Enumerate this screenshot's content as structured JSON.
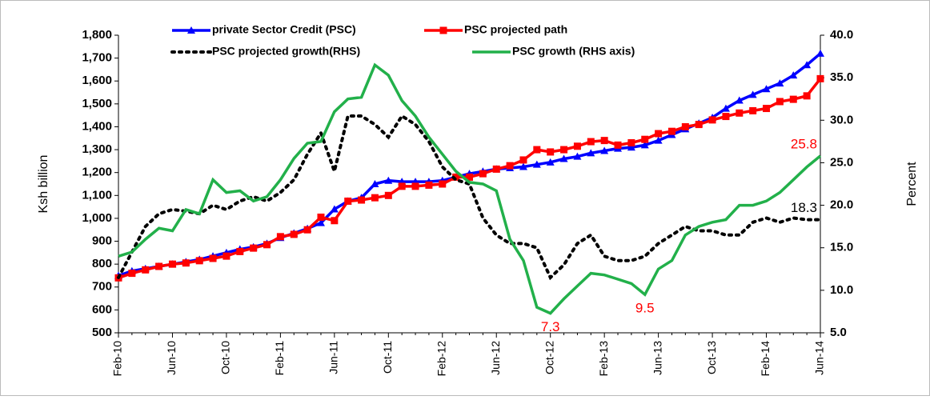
{
  "chart_data": {
    "type": "line",
    "y_label": "Ksh billion",
    "y2_label": "Percent",
    "categories": [
      "Feb-10",
      null,
      null,
      null,
      "Jun-10",
      null,
      null,
      null,
      "Oct-10",
      null,
      null,
      null,
      "Feb-11",
      null,
      null,
      null,
      "Jun-11",
      null,
      null,
      null,
      "Oct-11",
      null,
      null,
      null,
      "Feb-12",
      null,
      null,
      null,
      "Jun-12",
      null,
      null,
      null,
      "Oct-12",
      null,
      null,
      null,
      "Feb-13",
      null,
      null,
      null,
      "Jun-13",
      null,
      null,
      null,
      "Oct-13",
      null,
      null,
      null,
      "Feb-14",
      null,
      null,
      null,
      "Jun-14"
    ],
    "ylim": [
      500,
      1800
    ],
    "yticks": [
      500,
      600,
      700,
      800,
      900,
      {
        "value": 1000,
        "label": "1,000"
      },
      {
        "value": 1100,
        "label": "1,100"
      },
      {
        "value": 1200,
        "label": "1,200"
      },
      {
        "value": 1300,
        "label": "1,300"
      },
      {
        "value": 1400,
        "label": "1,400"
      },
      {
        "value": 1500,
        "label": "1,500"
      },
      {
        "value": 1600,
        "label": "1,600"
      },
      {
        "value": 1700,
        "label": "1,700"
      },
      {
        "value": 1800,
        "label": "1,800"
      }
    ],
    "y2lim": [
      5,
      40
    ],
    "y2ticks": [
      {
        "value": 5,
        "label": "5.0"
      },
      {
        "value": 10,
        "label": "10.0"
      },
      {
        "value": 15,
        "label": "15.0"
      },
      {
        "value": 20,
        "label": "20.0"
      },
      {
        "value": 25,
        "label": "25.0"
      },
      {
        "value": 30,
        "label": "30.0"
      },
      {
        "value": 35,
        "label": "35.0"
      },
      {
        "value": 40,
        "label": "40.0"
      }
    ],
    "series": [
      {
        "name": "private Sector Credit (PSC)",
        "color": "#0000ff",
        "marker": "triangle",
        "dash": false,
        "values": [
          750,
          770,
          780,
          790,
          800,
          810,
          820,
          835,
          850,
          865,
          875,
          890,
          915,
          935,
          955,
          980,
          1040,
          1075,
          1090,
          1150,
          1165,
          1160,
          1160,
          1160,
          1165,
          1180,
          1195,
          1205,
          1215,
          1220,
          1225,
          1235,
          1245,
          1260,
          1270,
          1285,
          1295,
          1305,
          1310,
          1320,
          1340,
          1365,
          1390,
          1415,
          1440,
          1480,
          1515,
          1540,
          1565,
          1590,
          1625,
          1670,
          1720
        ]
      },
      {
        "name": "PSC projected path",
        "color": "#ff0000",
        "marker": "square",
        "dash": false,
        "values": [
          740,
          760,
          775,
          790,
          800,
          805,
          815,
          825,
          835,
          855,
          870,
          885,
          920,
          930,
          950,
          1005,
          990,
          1075,
          1080,
          1090,
          1100,
          1140,
          1140,
          1145,
          1150,
          1180,
          1180,
          1195,
          1215,
          1230,
          1255,
          1300,
          1290,
          1300,
          1315,
          1335,
          1340,
          1320,
          1330,
          1345,
          1370,
          1380,
          1400,
          1410,
          1430,
          1445,
          1460,
          1470,
          1480,
          1510,
          1520,
          1535,
          1610
        ]
      },
      {
        "name": "PSC projected growth(RHS)",
        "color": "#000000",
        "marker": null,
        "dash": true,
        "axis": "y2",
        "values": [
          11.5,
          14.5,
          17.5,
          19.0,
          19.5,
          19.3,
          19.0,
          20.0,
          19.5,
          20.5,
          21.0,
          20.5,
          21.5,
          23.0,
          26.0,
          28.5,
          24.0,
          30.5,
          30.5,
          29.5,
          28.0,
          30.5,
          29.5,
          27.5,
          24.5,
          23.0,
          22.5,
          18.5,
          16.5,
          15.5,
          15.5,
          15.0,
          11.5,
          13.0,
          15.5,
          16.5,
          14.0,
          13.5,
          13.5,
          14.0,
          15.5,
          16.5,
          17.5,
          17.0,
          17.0,
          16.5,
          16.5,
          18.0,
          18.5,
          18.0,
          18.5,
          18.3,
          18.3
        ],
        "value_labels": [
          null,
          null,
          null,
          null,
          null,
          null,
          null,
          null,
          null,
          null,
          null,
          null,
          null,
          null,
          null,
          null,
          null,
          null,
          null,
          null,
          null,
          null,
          null,
          null,
          null,
          null,
          null,
          null,
          null,
          null,
          null,
          null,
          null,
          null,
          null,
          null,
          null,
          null,
          null,
          null,
          null,
          null,
          null,
          null,
          null,
          null,
          null,
          null,
          null,
          null,
          null,
          null,
          "18.3"
        ],
        "value_label_colors": "#000000"
      },
      {
        "name": "PSC growth (RHS axis)",
        "color": "#22b04a",
        "marker": null,
        "dash": false,
        "axis": "y2",
        "values": [
          14.0,
          14.5,
          16.0,
          17.3,
          17.0,
          19.5,
          19.0,
          23.0,
          21.5,
          21.7,
          20.5,
          21.0,
          23.0,
          25.5,
          27.3,
          27.5,
          31.0,
          32.5,
          32.7,
          36.5,
          35.3,
          32.3,
          30.5,
          28.0,
          26.0,
          24.0,
          22.7,
          22.5,
          21.7,
          16.0,
          13.5,
          8.0,
          7.3,
          9.0,
          10.5,
          12.0,
          11.8,
          11.3,
          10.8,
          9.5,
          12.5,
          13.5,
          16.5,
          17.5,
          18.0,
          18.3,
          20.0,
          20.0,
          20.5,
          21.5,
          23.0,
          24.5,
          25.8
        ],
        "value_labels": [
          null,
          null,
          null,
          null,
          null,
          null,
          null,
          null,
          null,
          null,
          null,
          null,
          null,
          null,
          null,
          null,
          null,
          null,
          null,
          null,
          null,
          null,
          null,
          null,
          null,
          null,
          null,
          null,
          null,
          null,
          null,
          null,
          "7.3",
          null,
          null,
          null,
          null,
          null,
          null,
          "9.5",
          null,
          null,
          null,
          null,
          null,
          null,
          null,
          null,
          null,
          null,
          null,
          null,
          "25.8"
        ],
        "value_label_colors": "#ff0000"
      }
    ]
  }
}
